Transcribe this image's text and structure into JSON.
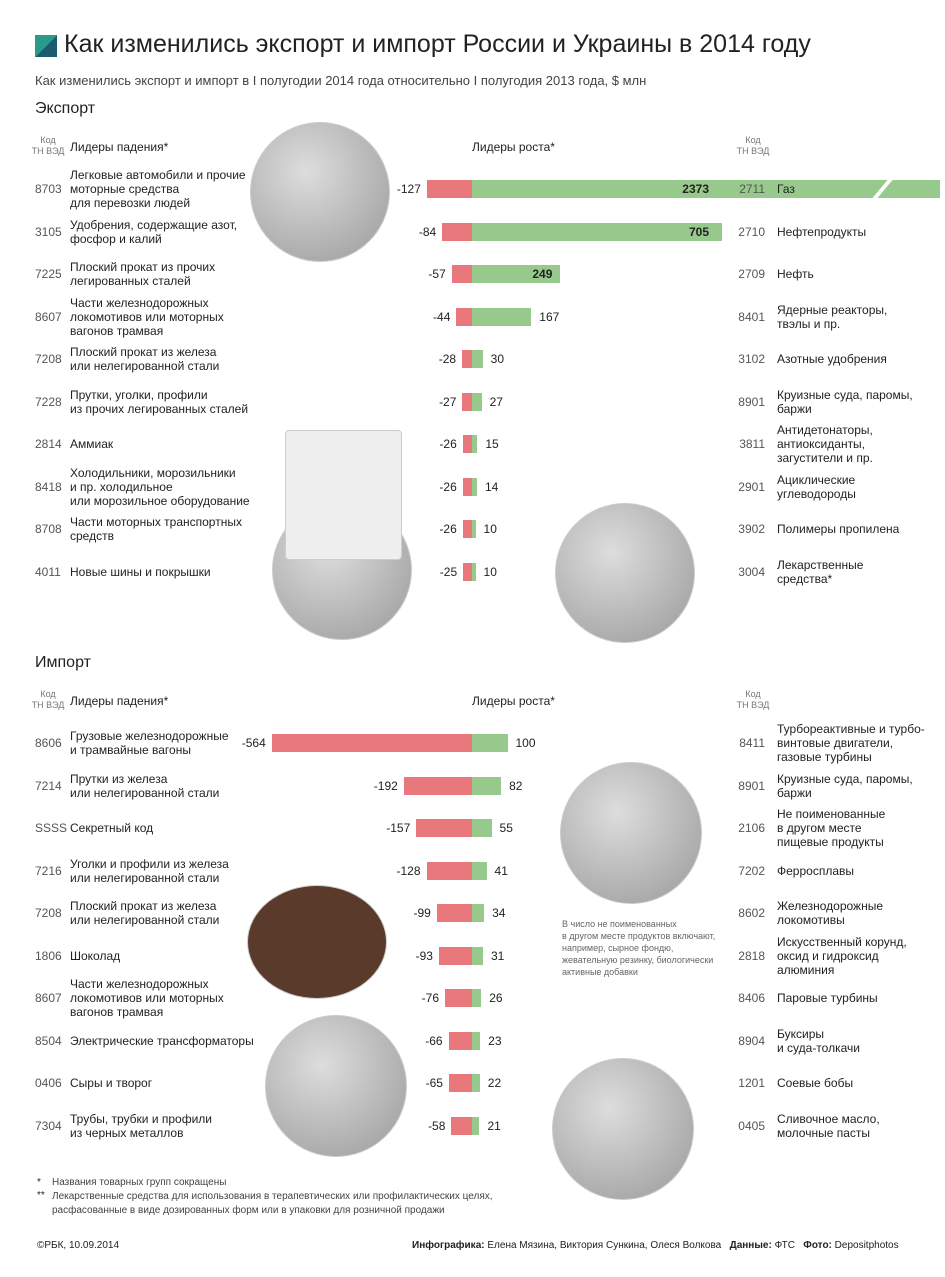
{
  "title": "Как изменились экспорт и импорт России и Украины в 2014 году",
  "subtitle": "Как изменились экспорт и импорт в I полугодии 2014 года относительно I полугодия 2013 года, $ млн",
  "chart_data": [
    {
      "type": "diverging-bar",
      "title": "Экспорт",
      "code_header": "Код\nТН ВЭД",
      "series": [
        {
          "name": "Лидеры падения*",
          "color": "#e8787b",
          "codes": [
            "8703",
            "3105",
            "7225",
            "8607",
            "7208",
            "7228",
            "2814",
            "8418",
            "8708",
            "4011"
          ],
          "labels": [
            "Легковые автомобили и прочие\nмоторные средства\nдля перевозки людей",
            "Удобрения, содержащие азот,\nфосфор и калий",
            "Плоский прокат из прочих\nлегированных сталей",
            "Части железнодорожных\nлокомотивов или моторных\nвагонов трамвая",
            "Плоский прокат из железа\nили нелегированной стали",
            "Прутки, уголки, профили\nиз прочих легированных сталей",
            "Аммиак",
            "Холодильники, морозильники\nи пр. холодильное\nили морозильное оборудование",
            "Части моторных транспортных\nсредств",
            "Новые шины и покрышки"
          ],
          "values": [
            -127,
            -84,
            -57,
            -44,
            -28,
            -27,
            -26,
            -26,
            -26,
            -25
          ]
        },
        {
          "name": "Лидеры роста*",
          "color": "#96c98b",
          "codes": [
            "2711",
            "2710",
            "2709",
            "8401",
            "3102",
            "8901",
            "3811",
            "2901",
            "3902",
            "3004"
          ],
          "labels": [
            "Газ",
            "Нефтепродукты",
            "Нефть",
            "Ядерные реакторы,\nтвэлы и пр.",
            "Азотные удобрения",
            "Круизные суда, паромы,\nбаржи",
            "Антидетонаторы,\nантиоксиданты,\nзагустители и пр.",
            "Ациклические\nуглеводороды",
            "Полимеры пропилена",
            "Лекарственные\nсредства*"
          ],
          "values": [
            2373,
            705,
            249,
            167,
            30,
            27,
            15,
            14,
            10,
            10
          ]
        }
      ]
    },
    {
      "type": "diverging-bar",
      "title": "Импорт",
      "code_header": "Код\nТН ВЭД",
      "series": [
        {
          "name": "Лидеры падения*",
          "color": "#e8787b",
          "codes": [
            "8606",
            "7214",
            "SSSS",
            "7216",
            "7208",
            "1806",
            "8607",
            "8504",
            "0406",
            "7304"
          ],
          "labels": [
            "Грузовые железнодорожные\nи трамвайные вагоны",
            "Прутки из железа\nили нелегированной стали",
            "Секретный код",
            "Уголки и профили из железа\nили нелегированной стали",
            "Плоский прокат из железа\nили нелегированной стали",
            "Шоколад",
            "Части железнодорожных\nлокомотивов или моторных\nвагонов трамвая",
            "Электрические трансформаторы",
            "Сыры и творог",
            "Трубы, трубки и профили\nиз черных металлов"
          ],
          "values": [
            -564,
            -192,
            -157,
            -128,
            -99,
            -93,
            -76,
            -66,
            -65,
            -58
          ]
        },
        {
          "name": "Лидеры роста*",
          "color": "#96c98b",
          "codes": [
            "8411",
            "8901",
            "2106",
            "7202",
            "8602",
            "2818",
            "8406",
            "8904",
            "1201",
            "0405"
          ],
          "labels": [
            "Турбореактивные и турбо-\nвинтовые двигатели,\nгазовые турбины",
            "Круизные суда, паромы,\nбаржи",
            "Не поименованные\nв другом месте\nпищевые продукты",
            "Ферросплавы",
            "Железнодорожные\nлокомотивы",
            "Искусственный корунд,\nоксид и гидроксид\nалюминия",
            "Паровые турбины",
            "Буксиры\nи суда-толкачи",
            "Соевые бобы",
            "Сливочное масло,\nмолочные пасты"
          ],
          "values": [
            100,
            82,
            55,
            41,
            34,
            31,
            26,
            23,
            22,
            21
          ]
        }
      ]
    }
  ],
  "note": "В число не поименованных\nв другом месте продуктов включают,\nнапример, сырное фондю,\nжевательную резинку, биологически\nактивные добавки",
  "footnotes": [
    {
      "mark": "*",
      "text": "Названия товарных групп сокращены"
    },
    {
      "mark": "**",
      "text": "Лекарственные средства для использования в терапевтических или профилактических целях,\nрасфасованные в виде дозированных форм или в упаковки для розничной продажи"
    }
  ],
  "credits": {
    "copyright": "©РБК, 10.09.2014",
    "graphics_label": "Инфографика:",
    "graphics": "Елена Мязина, Виктория Сункина, Олеся Волкова",
    "data_label": "Данные:",
    "data": "ФТС",
    "photo_label": "Фото:",
    "photo": "Depositphotos"
  }
}
